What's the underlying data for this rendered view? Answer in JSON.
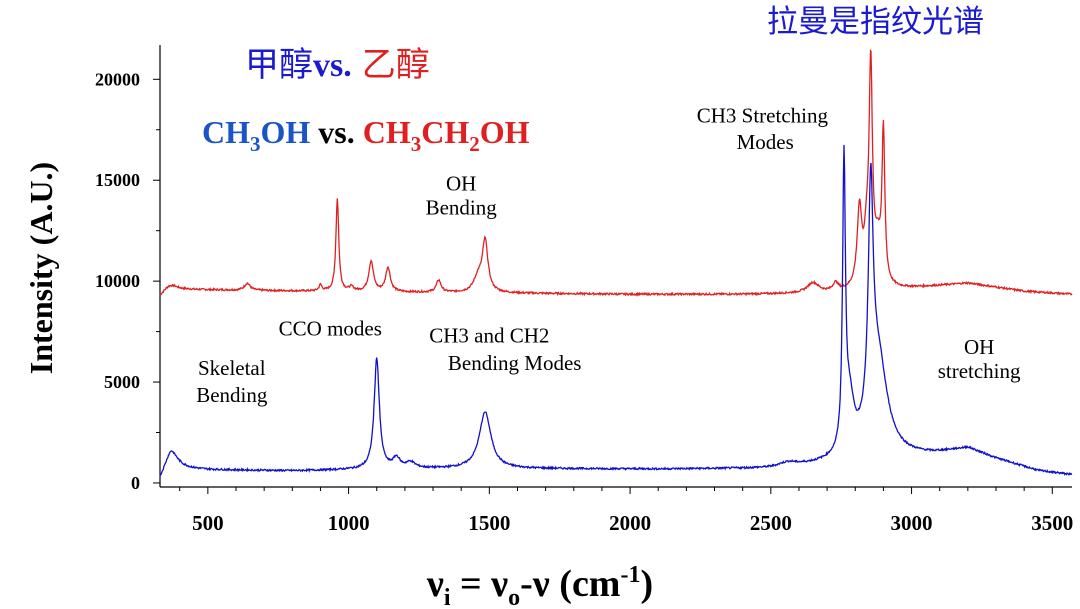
{
  "colors": {
    "methanol": "#1010cc",
    "ethanol": "#e02020",
    "axis": "#000000",
    "title_cn": "#1a1ad0"
  },
  "header": {
    "cn_methanol": "甲醇",
    "cn_vs": "vs.",
    "cn_ethanol": "乙醇",
    "fingerprint": "拉曼是指纹光谱"
  },
  "formula": {
    "meth_a": "CH",
    "meth_sub": "3",
    "meth_b": "OH",
    "vs": " vs. ",
    "eth_a": "CH",
    "eth_sub1": "3",
    "eth_b": "CH",
    "eth_sub2": "2",
    "eth_c": "OH"
  },
  "xlabel": {
    "nu": "ν",
    "sub_i": "i",
    "eq": " = ",
    "sub_o": "o",
    "dash": "-ν (cm",
    "sup": "-1",
    "close": ")"
  },
  "chart_data": {
    "type": "line",
    "title": "",
    "ylabel": "Intensity (A.U.)",
    "xlabel": "νi = νo-ν (cm-1)",
    "xlim": [
      330,
      3570
    ],
    "ylim": [
      -200,
      21700
    ],
    "xticks": [
      500,
      1000,
      1500,
      2000,
      2500,
      3000,
      3500
    ],
    "yticks": [
      0,
      5000,
      10000,
      15000,
      20000
    ],
    "series": [
      {
        "name": "CH3CH2OH",
        "color": "#e02020",
        "baseline": [
          [
            330,
            9200
          ],
          [
            380,
            9600
          ],
          [
            600,
            9550
          ],
          [
            900,
            9500
          ],
          [
            1200,
            9450
          ],
          [
            1600,
            9400
          ],
          [
            2000,
            9350
          ],
          [
            2400,
            9350
          ],
          [
            2700,
            9400
          ],
          [
            2950,
            9600
          ],
          [
            3200,
            9900
          ],
          [
            3400,
            9500
          ],
          [
            3570,
            9350
          ]
        ],
        "peaks": [
          [
            360,
            300,
            25
          ],
          [
            640,
            350,
            12
          ],
          [
            900,
            300,
            6
          ],
          [
            960,
            4600,
            6
          ],
          [
            1010,
            200,
            10
          ],
          [
            1080,
            1500,
            10
          ],
          [
            1140,
            1200,
            10
          ],
          [
            1320,
            600,
            10
          ],
          [
            1460,
            700,
            18
          ],
          [
            1485,
            2500,
            12
          ],
          [
            2650,
            500,
            25
          ],
          [
            2730,
            400,
            12
          ],
          [
            2815,
            3800,
            10
          ],
          [
            2840,
            2000,
            10
          ],
          [
            2855,
            10600,
            7
          ],
          [
            2880,
            2000,
            15
          ],
          [
            2900,
            7300,
            6
          ]
        ]
      },
      {
        "name": "CH3OH",
        "color": "#1010cc",
        "baseline": [
          [
            330,
            0
          ],
          [
            370,
            700
          ],
          [
            500,
            650
          ],
          [
            800,
            600
          ],
          [
            1000,
            650
          ],
          [
            1300,
            700
          ],
          [
            1700,
            700
          ],
          [
            2100,
            680
          ],
          [
            2500,
            700
          ],
          [
            2700,
            900
          ],
          [
            2800,
            1000
          ],
          [
            2950,
            1200
          ],
          [
            3080,
            1400
          ],
          [
            3200,
            1700
          ],
          [
            3300,
            1200
          ],
          [
            3450,
            600
          ],
          [
            3570,
            400
          ]
        ],
        "peaks": [
          [
            368,
            900,
            30
          ],
          [
            1100,
            5500,
            11
          ],
          [
            1170,
            500,
            15
          ],
          [
            1220,
            300,
            20
          ],
          [
            1485,
            2800,
            25
          ],
          [
            2560,
            200,
            40
          ],
          [
            2760,
            14000,
            6
          ],
          [
            2780,
            2500,
            18
          ],
          [
            2855,
            11000,
            10
          ],
          [
            2880,
            5000,
            40
          ]
        ]
      }
    ],
    "annotations": [
      {
        "id": "oh-bending-a",
        "text": "OH",
        "x": 1400,
        "y": 14500
      },
      {
        "id": "oh-bending-b",
        "text": "Bending",
        "x": 1400,
        "y": 13300
      },
      {
        "id": "ch3-stretch-a",
        "text": "CH3 Stretching",
        "x": 2470,
        "y": 17850
      },
      {
        "id": "ch3-stretch-b",
        "text": "Modes",
        "x": 2480,
        "y": 16550
      },
      {
        "id": "cco-modes",
        "text": "CCO modes",
        "x": 935,
        "y": 7300
      },
      {
        "id": "ch3ch2-a",
        "text": "CH3 and CH2",
        "x": 1500,
        "y": 6950
      },
      {
        "id": "ch3ch2-b",
        "text": "Bending Modes",
        "x": 1590,
        "y": 5600
      },
      {
        "id": "skeletal-a",
        "text": "Skeletal",
        "x": 585,
        "y": 5350
      },
      {
        "id": "skeletal-b",
        "text": "Bending",
        "x": 585,
        "y": 4000
      },
      {
        "id": "oh-stretch-a",
        "text": "OH",
        "x": 3240,
        "y": 6400
      },
      {
        "id": "oh-stretch-b",
        "text": "stretching",
        "x": 3240,
        "y": 5200
      }
    ]
  }
}
